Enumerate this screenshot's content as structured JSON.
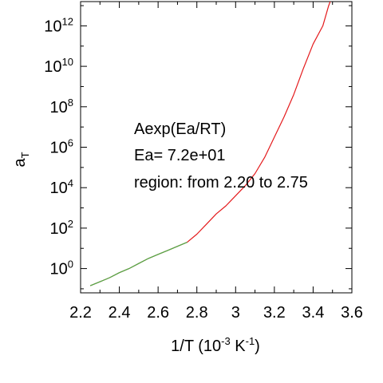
{
  "chart_data": {
    "type": "line",
    "xlabel": {
      "base": "1/T (10",
      "exp1": "-3",
      "mid": " K",
      "exp2": "-1",
      "end": ")"
    },
    "ylabel": {
      "base": "a",
      "sub": "T"
    },
    "xlim": [
      2.2,
      3.6
    ],
    "ylim_log10": [
      -1.2,
      13.2
    ],
    "y_scale": "log",
    "x_ticks": [
      "2.2",
      "2.4",
      "2.6",
      "2.8",
      "3",
      "3.2",
      "3.4",
      "3.6"
    ],
    "y_ticks": [
      {
        "base": "10",
        "exp": "0"
      },
      {
        "base": "10",
        "exp": "2"
      },
      {
        "base": "10",
        "exp": "4"
      },
      {
        "base": "10",
        "exp": "6"
      },
      {
        "base": "10",
        "exp": "8"
      },
      {
        "base": "10",
        "exp": "10"
      },
      {
        "base": "10",
        "exp": "12"
      }
    ],
    "annotations": [
      "Aexp(Ea/RT)",
      "Ea= 7.2e+01",
      "region: from 2.20 to 2.75"
    ],
    "series": [
      {
        "color": "#e41a1c",
        "points": [
          [
            2.25,
            -0.85
          ],
          [
            2.3,
            -0.65
          ],
          [
            2.35,
            -0.45
          ],
          [
            2.4,
            -0.2
          ],
          [
            2.45,
            0.0
          ],
          [
            2.5,
            0.25
          ],
          [
            2.55,
            0.5
          ],
          [
            2.6,
            0.7
          ],
          [
            2.65,
            0.9
          ],
          [
            2.7,
            1.1
          ],
          [
            2.75,
            1.3
          ],
          [
            2.8,
            1.7
          ],
          [
            2.85,
            2.2
          ],
          [
            2.9,
            2.7
          ],
          [
            2.95,
            3.1
          ],
          [
            3.0,
            3.6
          ],
          [
            3.05,
            4.1
          ],
          [
            3.1,
            4.7
          ],
          [
            3.15,
            5.5
          ],
          [
            3.2,
            6.5
          ],
          [
            3.25,
            7.5
          ],
          [
            3.3,
            8.6
          ],
          [
            3.35,
            9.9
          ],
          [
            3.4,
            11.1
          ],
          [
            3.45,
            12.0
          ],
          [
            3.48,
            13.0
          ],
          [
            3.52,
            14.0
          ]
        ]
      },
      {
        "color": "#4daf4a",
        "points": [
          [
            2.25,
            -0.85
          ],
          [
            2.3,
            -0.65
          ],
          [
            2.35,
            -0.45
          ],
          [
            2.4,
            -0.2
          ],
          [
            2.45,
            0.0
          ],
          [
            2.5,
            0.25
          ],
          [
            2.55,
            0.5
          ],
          [
            2.6,
            0.7
          ],
          [
            2.65,
            0.9
          ],
          [
            2.7,
            1.1
          ],
          [
            2.75,
            1.3
          ]
        ]
      }
    ]
  }
}
